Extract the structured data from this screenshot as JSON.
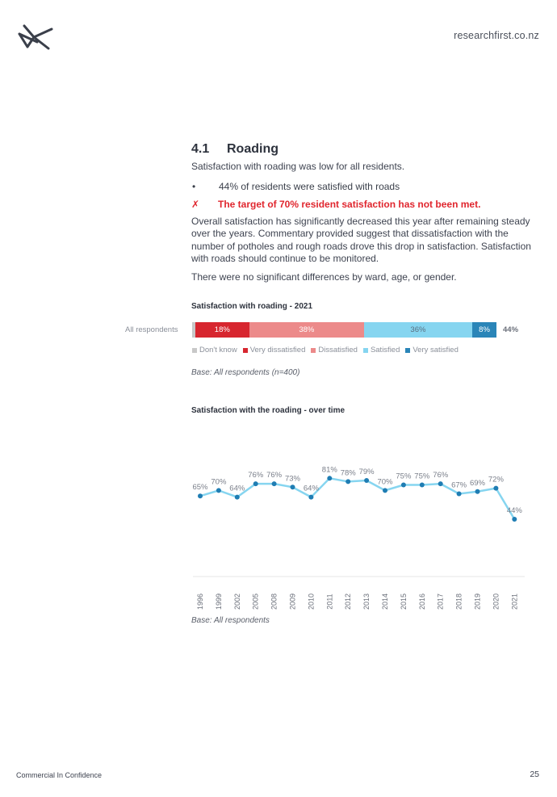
{
  "header": {
    "site": "researchfirst.co.nz"
  },
  "section": {
    "number": "4.1",
    "title": "Roading",
    "intro": "Satisfaction with roading was low for all residents.",
    "bullet_mark": "•",
    "bullet": "44% of residents were satisfied with roads",
    "target_mark": "✗",
    "target": "The target of 70% resident satisfaction has not been met.",
    "paragraph1": "Overall satisfaction has significantly decreased this year after remaining steady over the years. Commentary provided suggest that dissatisfaction with the number of potholes and rough roads drove this drop in satisfaction. Satisfaction with roads should continue to be monitored.",
    "paragraph2": "There were no significant differences by ward, age, or gender."
  },
  "chart_data": [
    {
      "type": "bar",
      "title": "Satisfaction with roading - 2021",
      "categories": [
        "All respondents"
      ],
      "series": [
        {
          "name": "Don't know",
          "values": [
            1
          ],
          "color": "#c8c8c8",
          "label": ""
        },
        {
          "name": "Very dissatisfied",
          "values": [
            18
          ],
          "color": "#d7262f",
          "label": "18%"
        },
        {
          "name": "Dissatisfied",
          "values": [
            38
          ],
          "color": "#ec8a8a",
          "label": "38%"
        },
        {
          "name": "Satisfied",
          "values": [
            36
          ],
          "color": "#86d5f0",
          "label": "36%"
        },
        {
          "name": "Very satisfied",
          "values": [
            8
          ],
          "color": "#2a85b8",
          "label": "8%"
        }
      ],
      "total_satisfied": "44%",
      "base": "Base: All respondents (n=400)"
    },
    {
      "type": "line",
      "title": "Satisfaction with the roading - over time",
      "x": [
        "1996",
        "1999",
        "2002",
        "2005",
        "2008",
        "2009",
        "2010",
        "2011",
        "2012",
        "2013",
        "2014",
        "2015",
        "2016",
        "2017",
        "2018",
        "2019",
        "2020",
        "2021"
      ],
      "values": [
        65,
        70,
        64,
        76,
        76,
        73,
        64,
        81,
        78,
        79,
        70,
        75,
        75,
        76,
        67,
        69,
        72,
        44
      ],
      "labels": [
        "65%",
        "70%",
        "64%",
        "76%",
        "76%",
        "73%",
        "64%",
        "81%",
        "78%",
        "79%",
        "70%",
        "75%",
        "75%",
        "76%",
        "67%",
        "69%",
        "72%",
        "44%"
      ],
      "line_color": "#86d5f0",
      "point_color": "#1f7db3",
      "base": "Base: All respondents"
    }
  ],
  "footer": {
    "left": "Commercial In Confidence",
    "page": "25"
  }
}
